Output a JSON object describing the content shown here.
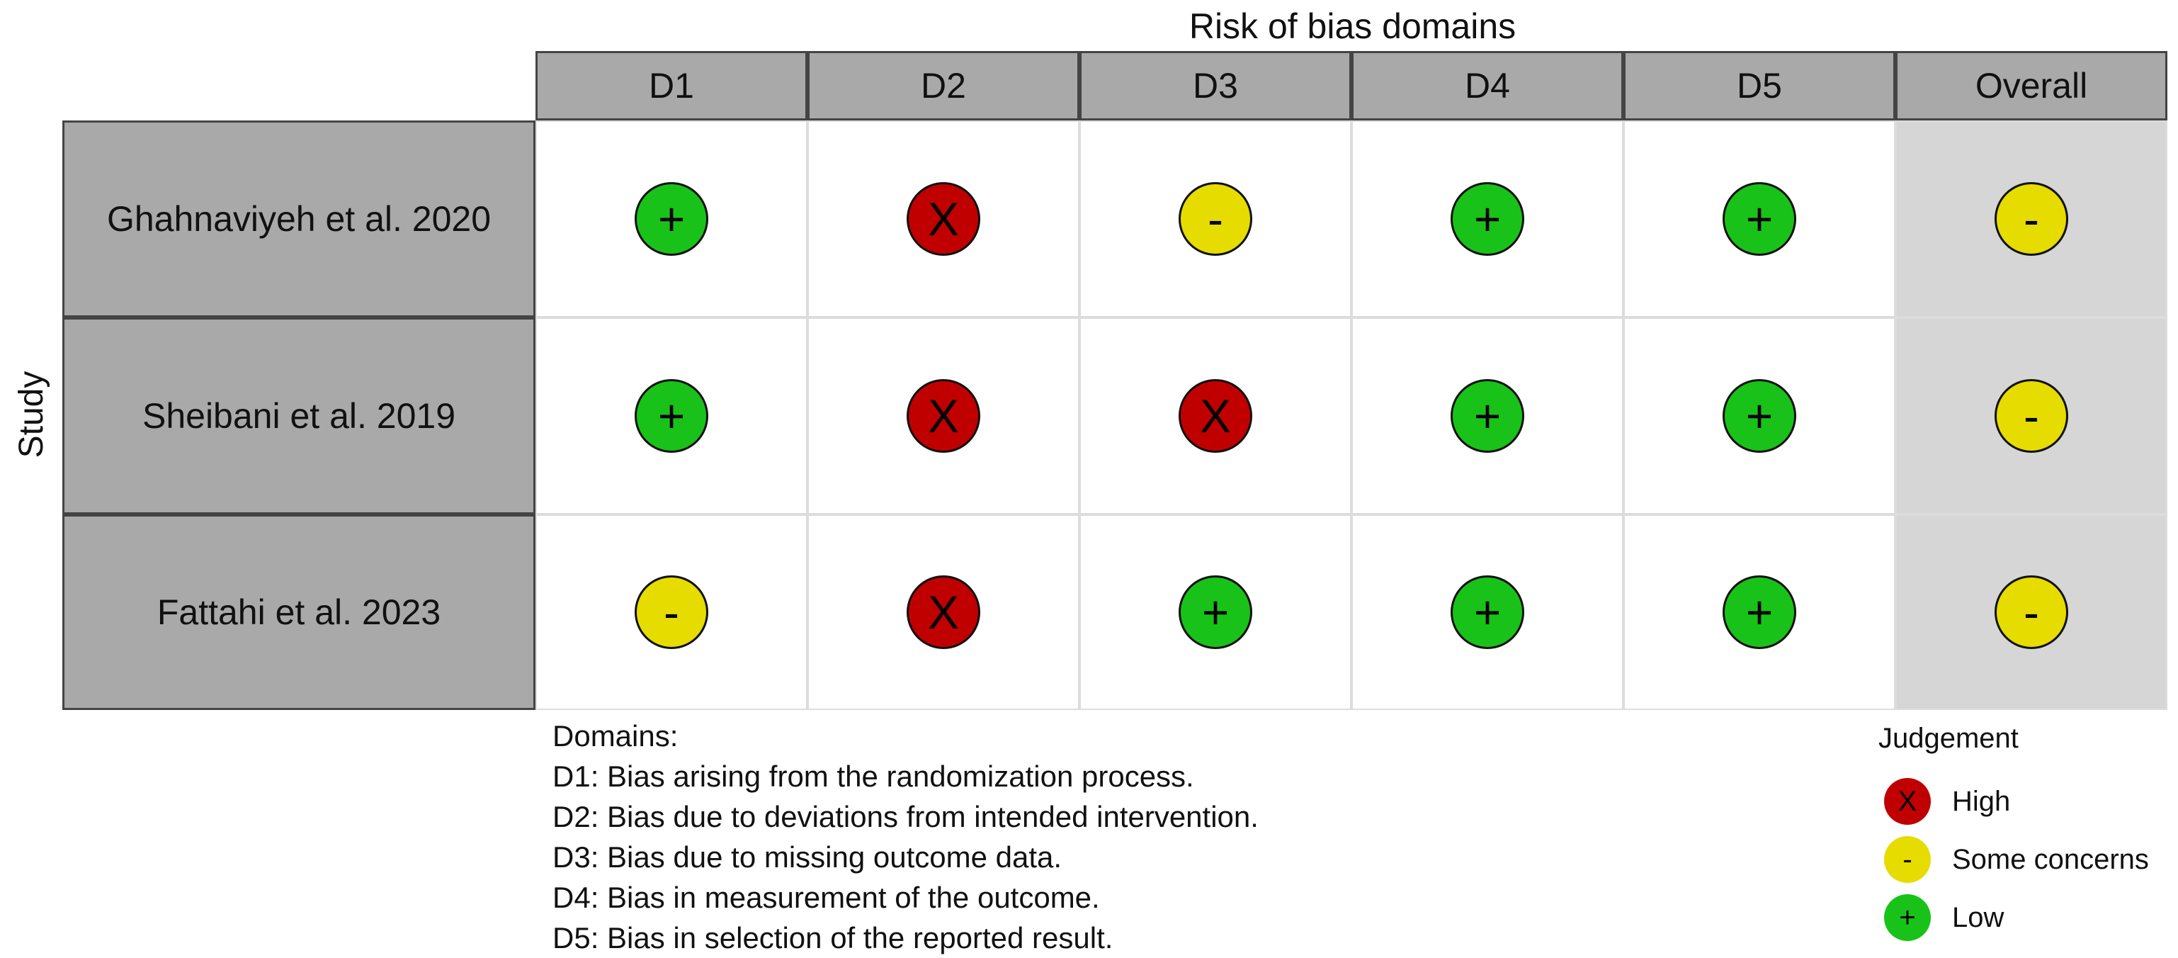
{
  "title": "Risk of bias domains",
  "y_axis_label": "Study",
  "columns": [
    "D1",
    "D2",
    "D3",
    "D4",
    "D5",
    "Overall"
  ],
  "studies": [
    "Ghahnaviyeh et al. 2020",
    "Sheibani et al. 2019",
    "Fattahi et al. 2023"
  ],
  "judgements": [
    [
      "low",
      "high",
      "some",
      "low",
      "low",
      "some"
    ],
    [
      "low",
      "high",
      "high",
      "low",
      "low",
      "some"
    ],
    [
      "some",
      "high",
      "low",
      "low",
      "low",
      "some"
    ]
  ],
  "symbols": {
    "high": "X",
    "some": "-",
    "low": "+"
  },
  "colors": {
    "high": "#c00000",
    "some": "#e6dc00",
    "low": "#19c219",
    "header_bg": "#a9a9a9",
    "overall_bg": "#d6d6d6"
  },
  "domains_legend": {
    "heading": "Domains:",
    "items": [
      "D1: Bias arising from the randomization process.",
      "D2: Bias due to deviations from intended intervention.",
      "D3: Bias due to missing outcome data.",
      "D4: Bias in measurement of the outcome.",
      "D5: Bias in selection of the reported result."
    ]
  },
  "judgement_legend": {
    "title": "Judgement",
    "items": [
      {
        "key": "high",
        "label": "High"
      },
      {
        "key": "some",
        "label": "Some concerns"
      },
      {
        "key": "low",
        "label": "Low"
      }
    ]
  }
}
